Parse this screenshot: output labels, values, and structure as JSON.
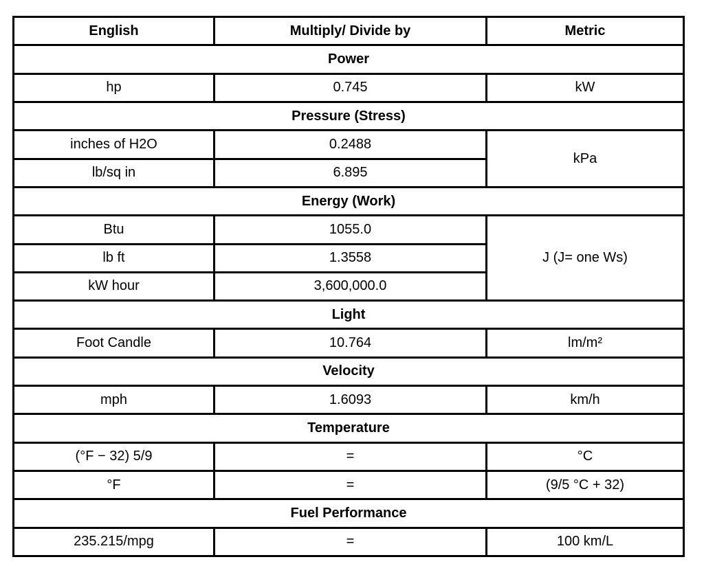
{
  "header": {
    "english": "English",
    "factor": "Multiply/ Divide by",
    "metric": "Metric"
  },
  "sections": {
    "power": {
      "title": "Power",
      "rows": [
        {
          "english": "hp",
          "factor": "0.745",
          "metric": "kW"
        }
      ]
    },
    "pressure": {
      "title": "Pressure (Stress)",
      "metric": "kPa",
      "rows": [
        {
          "english": "inches of H2O",
          "factor": "0.2488"
        },
        {
          "english": "lb/sq in",
          "factor": "6.895"
        }
      ]
    },
    "energy": {
      "title": "Energy (Work)",
      "metric": "J (J= one Ws)",
      "rows": [
        {
          "english": "Btu",
          "factor": "1055.0"
        },
        {
          "english": "lb ft",
          "factor": "1.3558"
        },
        {
          "english": "kW hour",
          "factor": "3,600,000.0"
        }
      ]
    },
    "light": {
      "title": "Light",
      "rows": [
        {
          "english": "Foot Candle",
          "factor": "10.764",
          "metric": "lm/m²"
        }
      ]
    },
    "velocity": {
      "title": "Velocity",
      "rows": [
        {
          "english": "mph",
          "factor": "1.6093",
          "metric": "km/h"
        }
      ]
    },
    "temperature": {
      "title": "Temperature",
      "rows": [
        {
          "english": "(°F − 32) 5/9",
          "factor": "=",
          "metric": "°C"
        },
        {
          "english": "°F",
          "factor": "=",
          "metric": "(9/5 °C + 32)"
        }
      ]
    },
    "fuel": {
      "title": "Fuel Performance",
      "rows": [
        {
          "english": "235.215/mpg",
          "factor": "=",
          "metric": "100 km/L"
        }
      ]
    }
  }
}
